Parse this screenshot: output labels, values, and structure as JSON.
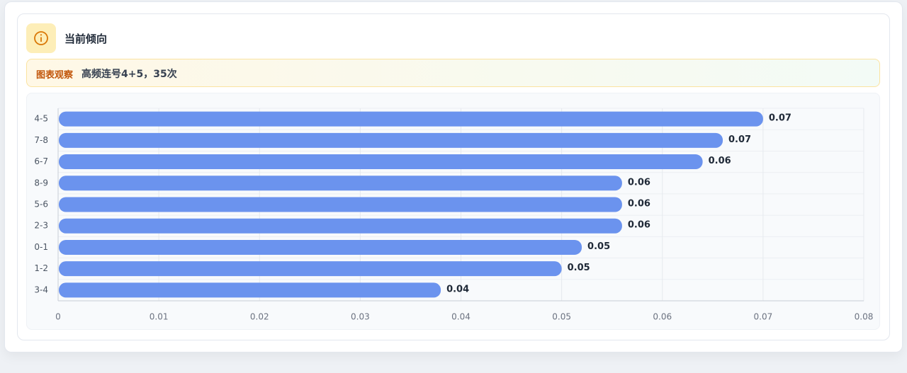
{
  "card": {
    "title": "当前倾向",
    "note_label": "图表观察",
    "note_text": "高频连号4+5，35次"
  },
  "chart_data": {
    "type": "bar",
    "orientation": "horizontal",
    "categories": [
      "4-5",
      "7-8",
      "6-7",
      "8-9",
      "5-6",
      "2-3",
      "0-1",
      "1-2",
      "3-4"
    ],
    "values": [
      0.07,
      0.066,
      0.064,
      0.056,
      0.056,
      0.056,
      0.052,
      0.05,
      0.038
    ],
    "value_labels": [
      "0.07",
      "0.07",
      "0.06",
      "0.06",
      "0.06",
      "0.06",
      "0.05",
      "0.05",
      "0.04"
    ],
    "color": "#6b93ee",
    "xlim": [
      0,
      0.08
    ],
    "xticks": [
      0,
      0.01,
      0.02,
      0.03,
      0.04,
      0.05,
      0.06,
      0.07,
      0.08
    ],
    "grid": true
  }
}
